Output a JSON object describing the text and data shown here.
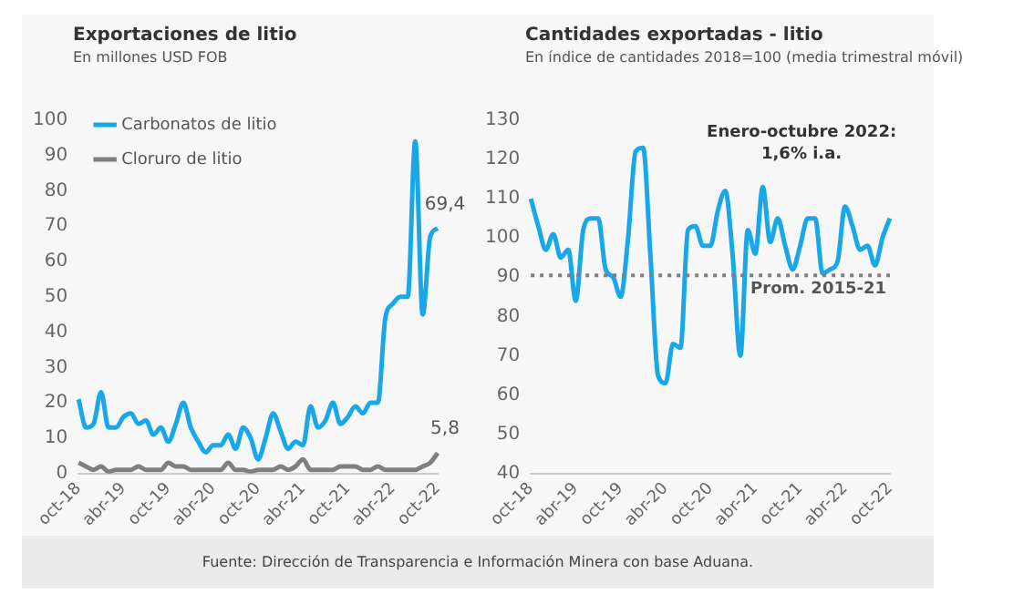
{
  "chart_data": [
    {
      "type": "line",
      "title": "Exportaciones de litio",
      "subtitle": "En millones USD FOB",
      "categories": [
        "oct-18",
        null,
        null,
        null,
        null,
        null,
        "abr-19",
        null,
        null,
        null,
        null,
        null,
        "oct-19",
        null,
        null,
        null,
        null,
        null,
        "abr-20",
        null,
        null,
        null,
        null,
        null,
        "oct-20",
        null,
        null,
        null,
        null,
        null,
        "abr-21",
        null,
        null,
        null,
        null,
        null,
        "oct-21",
        null,
        null,
        null,
        null,
        null,
        "abr-22",
        null,
        null,
        null,
        null,
        null,
        "oct-22"
      ],
      "series": [
        {
          "name": "Carbonatos de litio",
          "color": "#1aa7e8",
          "values": [
            21,
            13,
            14,
            23,
            13,
            13,
            16,
            17,
            14,
            15,
            11,
            13,
            9,
            14,
            20,
            13,
            9,
            6,
            8,
            8,
            11,
            7,
            13,
            10,
            4,
            10,
            17,
            12,
            7,
            9,
            8,
            19,
            13,
            15,
            20,
            14,
            16,
            19,
            17,
            20,
            20,
            44,
            48,
            50,
            50,
            94,
            45,
            67,
            69.4
          ],
          "value_labels": [
            null,
            null,
            null,
            null,
            null,
            null,
            null,
            null,
            null,
            null,
            null,
            null,
            null,
            null,
            null,
            null,
            null,
            null,
            null,
            null,
            null,
            null,
            null,
            null,
            null,
            null,
            null,
            null,
            null,
            null,
            null,
            null,
            null,
            null,
            null,
            null,
            null,
            null,
            null,
            null,
            null,
            null,
            null,
            null,
            null,
            null,
            null,
            null,
            "69,4"
          ]
        },
        {
          "name": "Cloruro de litio",
          "color": "#7f7f7f",
          "values": [
            3,
            2,
            1,
            2,
            0.5,
            1,
            1,
            1,
            2,
            1,
            1,
            1,
            3,
            2,
            2,
            1,
            1,
            1,
            1,
            1,
            3,
            1,
            1,
            0.5,
            1,
            1,
            1,
            2,
            1,
            2,
            4,
            1,
            1,
            1,
            1,
            2,
            2,
            2,
            1,
            1,
            2,
            1,
            1,
            1,
            1,
            1,
            2,
            3,
            5.8
          ],
          "value_labels": [
            null,
            null,
            null,
            null,
            null,
            null,
            null,
            null,
            null,
            null,
            null,
            null,
            null,
            null,
            null,
            null,
            null,
            null,
            null,
            null,
            null,
            null,
            null,
            null,
            null,
            null,
            null,
            null,
            null,
            null,
            null,
            null,
            null,
            null,
            null,
            null,
            null,
            null,
            null,
            null,
            null,
            null,
            null,
            null,
            null,
            null,
            null,
            null,
            "5,8"
          ]
        }
      ],
      "ylim": [
        0,
        100
      ],
      "yticks": [
        0,
        10,
        20,
        30,
        40,
        50,
        60,
        70,
        80,
        90,
        100
      ],
      "grid": false,
      "legend": "top left",
      "marker": "none",
      "annotations": [
        "Fuente: Dirección de Transparencia e Información Minera con base Aduana."
      ]
    },
    {
      "type": "line",
      "title": "Cantidades exportadas - litio",
      "subtitle": "En índice de cantidades 2018=100 (media trimestral móvil)",
      "categories": [
        "oct-18",
        null,
        null,
        null,
        null,
        null,
        "abr-19",
        null,
        null,
        null,
        null,
        null,
        "oct-19",
        null,
        null,
        null,
        null,
        null,
        "abr-20",
        null,
        null,
        null,
        null,
        null,
        "oct-20",
        null,
        null,
        null,
        null,
        null,
        "abr-21",
        null,
        null,
        null,
        null,
        null,
        "oct-21",
        null,
        null,
        null,
        null,
        null,
        "abr-22",
        null,
        null,
        null,
        null,
        null,
        "oct-22"
      ],
      "series": [
        {
          "color": "#1aa7e8",
          "values": [
            110,
            103,
            97,
            101,
            95,
            97,
            84,
            102,
            105,
            105,
            92,
            90,
            85,
            100,
            122,
            123,
            95,
            65,
            63,
            73,
            72,
            102,
            103,
            98,
            98,
            107,
            112,
            95,
            70,
            102,
            96,
            113,
            99,
            105,
            98,
            92,
            98,
            105,
            105,
            91,
            92,
            94,
            108,
            103,
            97,
            98,
            93,
            100,
            105
          ]
        }
      ],
      "ylim": [
        40,
        130
      ],
      "yticks": [
        40,
        50,
        60,
        70,
        80,
        90,
        100,
        110,
        120,
        130
      ],
      "grid": false,
      "legend": false,
      "marker": "none",
      "ref_lines": [
        {
          "axis": "y",
          "value": 90.5,
          "label": "Prom. 2015-21",
          "color": "#7f7f7f",
          "line_style": "dotted"
        }
      ],
      "annotations": [
        "Enero-octubre 2022: 1,6% i.a."
      ]
    }
  ]
}
